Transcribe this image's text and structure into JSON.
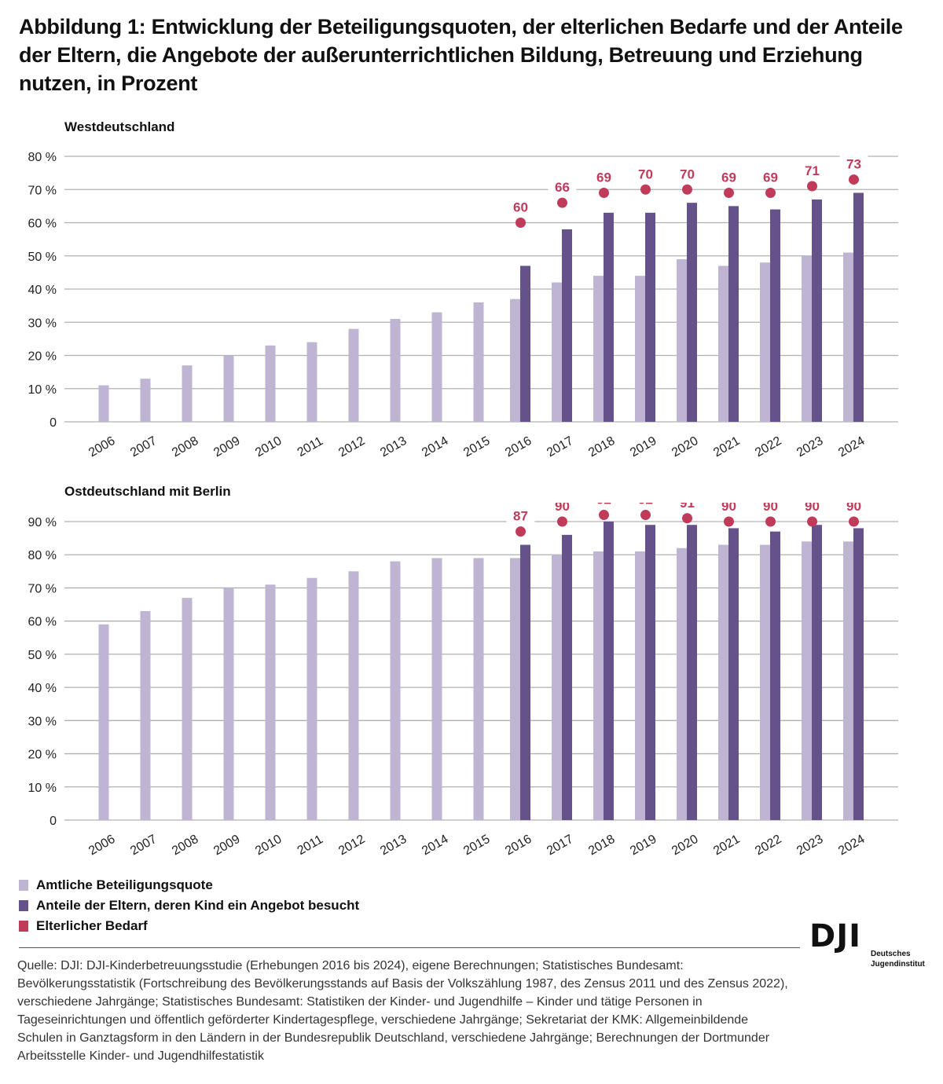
{
  "title": "Abbildung 1: Entwicklung der Beteiligungsquoten, der elterlichen Bedarfe und der Anteile der Eltern, die Angebote der außerunterrichtlichen Bildung, Betreuung und Erziehung nutzen, in Prozent",
  "colors": {
    "amtlich": "#bfb5d2",
    "eltern": "#66528b",
    "bedarf": "#c03a5a",
    "grid": "#b0b0b0"
  },
  "legend": [
    {
      "label": "Amtliche Beteiligungsquote",
      "color": "#bfb5d2"
    },
    {
      "label": "Anteile der Eltern, deren Kind ein Angebot besucht",
      "color": "#66528b"
    },
    {
      "label": "Elterlicher Bedarf",
      "color": "#c03a5a"
    }
  ],
  "source": "Quelle: DJI: DJI-Kinderbetreuungsstudie (Erhebungen 2016 bis 2024), eigene Berechnungen; Statistisches Bundesamt: Bevölkerungsstatistik (Fortschreibung des Bevölkerungsstands auf Basis der Volkszählung 1987, des Zensus 2011 und des Zensus 2022), verschiedene Jahrgänge; Statistisches Bundesamt: Statistiken der Kinder- und Jugendhilfe – Kinder und tätige Personen in Tageseinrichtungen und öffentlich geförderter Kindertagespflege, verschiedene Jahrgänge; Sekretariat der KMK: Allgemeinbildende Schulen in Ganztagsform in den Ländern in der Bundesrepublik Deutschland, verschiedene Jahrgänge; Berechnungen der Dortmunder Arbeitsstelle Kinder- und Jugendhilfestatistik",
  "logo": {
    "mark": "DJI",
    "line1": "Deutsches",
    "line2": "Jugendinstitut"
  },
  "chart_data": [
    {
      "type": "bar",
      "title": "Westdeutschland",
      "categories": [
        "2006",
        "2007",
        "2008",
        "2009",
        "2010",
        "2011",
        "2012",
        "2013",
        "2014",
        "2015",
        "2016",
        "2017",
        "2018",
        "2019",
        "2020",
        "2021",
        "2022",
        "2023",
        "2024"
      ],
      "ylim": [
        0,
        80
      ],
      "yticks": [
        0,
        10,
        20,
        30,
        40,
        50,
        60,
        70,
        80
      ],
      "ytick_labels": [
        "0",
        "10 %",
        "20 %",
        "30 %",
        "40 %",
        "50 %",
        "60 %",
        "70 %",
        "80 %"
      ],
      "grid": true,
      "series": [
        {
          "name": "Amtliche Beteiligungsquote",
          "type": "bar",
          "values": [
            11,
            13,
            17,
            20,
            23,
            24,
            28,
            31,
            33,
            36,
            37,
            42,
            44,
            44,
            49,
            47,
            48,
            50,
            51
          ]
        },
        {
          "name": "Anteile der Eltern, deren Kind ein Angebot besucht",
          "type": "bar",
          "values": [
            null,
            null,
            null,
            null,
            null,
            null,
            null,
            null,
            null,
            null,
            47,
            58,
            63,
            63,
            66,
            65,
            64,
            67,
            69
          ]
        },
        {
          "name": "Elterlicher Bedarf",
          "type": "scatter",
          "values": [
            null,
            null,
            null,
            null,
            null,
            null,
            null,
            null,
            null,
            null,
            60,
            66,
            69,
            70,
            70,
            69,
            69,
            71,
            73
          ],
          "data_labels": true
        }
      ]
    },
    {
      "type": "bar",
      "title": "Ostdeutschland mit Berlin",
      "categories": [
        "2006",
        "2007",
        "2008",
        "2009",
        "2010",
        "2011",
        "2012",
        "2013",
        "2014",
        "2015",
        "2016",
        "2017",
        "2018",
        "2019",
        "2020",
        "2021",
        "2022",
        "2023",
        "2024"
      ],
      "ylim": [
        0,
        90
      ],
      "yticks": [
        0,
        10,
        20,
        30,
        40,
        50,
        60,
        70,
        80,
        90
      ],
      "ytick_labels": [
        "0",
        "10 %",
        "20 %",
        "30 %",
        "40 %",
        "50 %",
        "60 %",
        "70 %",
        "80 %",
        "90 %"
      ],
      "grid": true,
      "series": [
        {
          "name": "Amtliche Beteiligungsquote",
          "type": "bar",
          "values": [
            59,
            63,
            67,
            70,
            71,
            73,
            75,
            78,
            79,
            79,
            79,
            80,
            81,
            81,
            82,
            83,
            83,
            84,
            84
          ]
        },
        {
          "name": "Anteile der Eltern, deren Kind ein Angebot besucht",
          "type": "bar",
          "values": [
            null,
            null,
            null,
            null,
            null,
            null,
            null,
            null,
            null,
            null,
            83,
            86,
            90,
            89,
            89,
            88,
            87,
            89,
            88
          ]
        },
        {
          "name": "Elterlicher Bedarf",
          "type": "scatter",
          "values": [
            null,
            null,
            null,
            null,
            null,
            null,
            null,
            null,
            null,
            null,
            87,
            90,
            92,
            92,
            91,
            90,
            90,
            90,
            90
          ],
          "data_labels": true
        }
      ]
    }
  ]
}
